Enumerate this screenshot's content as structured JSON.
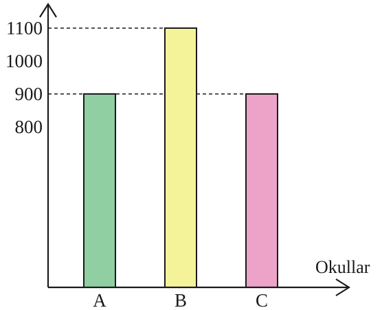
{
  "chart_data": {
    "type": "bar",
    "categories": [
      "A",
      "B",
      "C"
    ],
    "values": [
      900,
      1100,
      900
    ],
    "colors": [
      "#8fcfa1",
      "#f5f39a",
      "#eda2c8"
    ],
    "y_ticks": [
      800,
      900,
      1000,
      1100
    ],
    "y_ticks_labels": [
      "800",
      "900",
      "1000",
      "1100"
    ],
    "reference_lines": [
      900,
      1100
    ],
    "xlabel": "Okullar",
    "ylabel": "",
    "title": "",
    "grid": false,
    "legend": "none",
    "y_axis_broken": true
  }
}
